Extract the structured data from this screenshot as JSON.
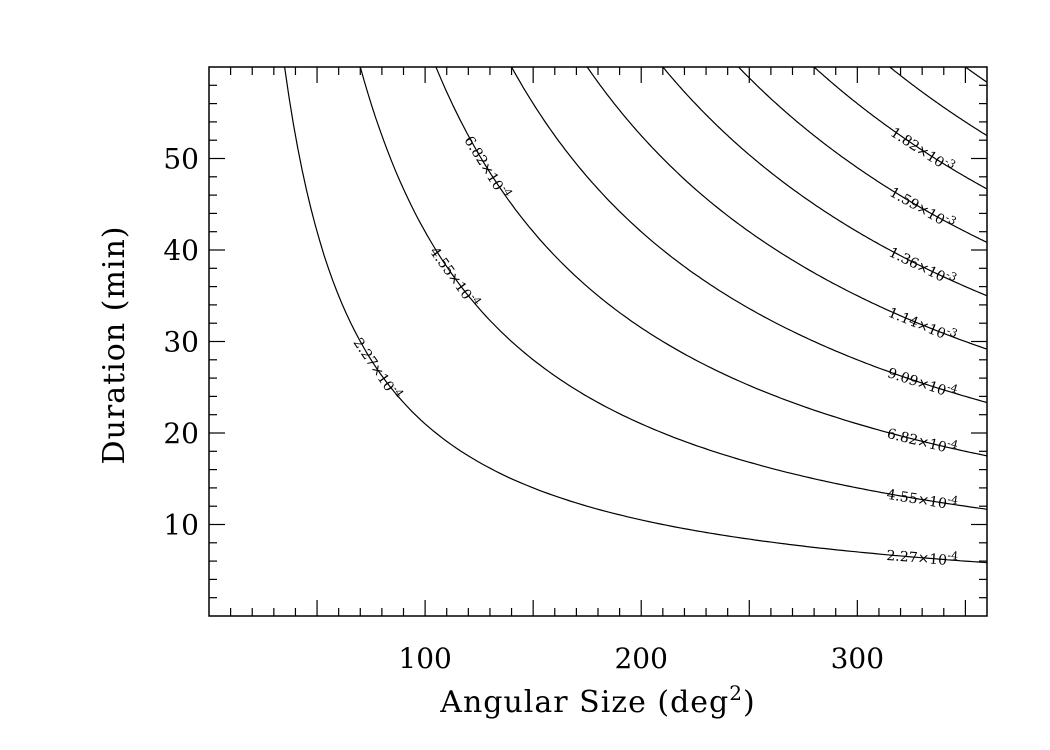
{
  "chart_data": {
    "type": "contour",
    "xlabel": "Angular Size (deg",
    "xlabel_sup": "2",
    "xlabel_suffix": ")",
    "ylabel": "Duration (min)",
    "xlim": [
      0,
      360
    ],
    "ylim": [
      0,
      60
    ],
    "x_ticks": [
      100,
      200,
      300
    ],
    "y_ticks": [
      10,
      20,
      30,
      40,
      50
    ],
    "x_minor_step": 10,
    "y_minor_step": 2,
    "grid": false,
    "contour_step": 0.000227,
    "contours": [
      {
        "mantissa": "2.27",
        "exponent": "-4",
        "level_index": 1,
        "labeled": true
      },
      {
        "mantissa": "4.55",
        "exponent": "-4",
        "level_index": 2,
        "labeled": true
      },
      {
        "mantissa": "6.82",
        "exponent": "-4",
        "level_index": 3,
        "labeled": true
      },
      {
        "mantissa": "9.09",
        "exponent": "-4",
        "level_index": 4,
        "labeled": true
      },
      {
        "mantissa": "1.14",
        "exponent": "-3",
        "level_index": 5,
        "labeled": true
      },
      {
        "mantissa": "1.36",
        "exponent": "-3",
        "level_index": 6,
        "labeled": true
      },
      {
        "mantissa": "1.59",
        "exponent": "-3",
        "level_index": 7,
        "labeled": true
      },
      {
        "mantissa": "1.82",
        "exponent": "-3",
        "level_index": 8,
        "labeled": true
      },
      {
        "mantissa": "",
        "exponent": "",
        "level_index": 9,
        "labeled": false
      },
      {
        "mantissa": "",
        "exponent": "",
        "level_index": 10,
        "labeled": false
      }
    ],
    "curve_constant_per_level": 2100,
    "left_curve_labels": [
      {
        "mantissa": "2.27",
        "exponent": "-4",
        "level_index": 1
      },
      {
        "mantissa": "4.55",
        "exponent": "-4",
        "level_index": 2
      },
      {
        "mantissa": "6.82",
        "exponent": "-4",
        "level_index": 3
      }
    ]
  }
}
